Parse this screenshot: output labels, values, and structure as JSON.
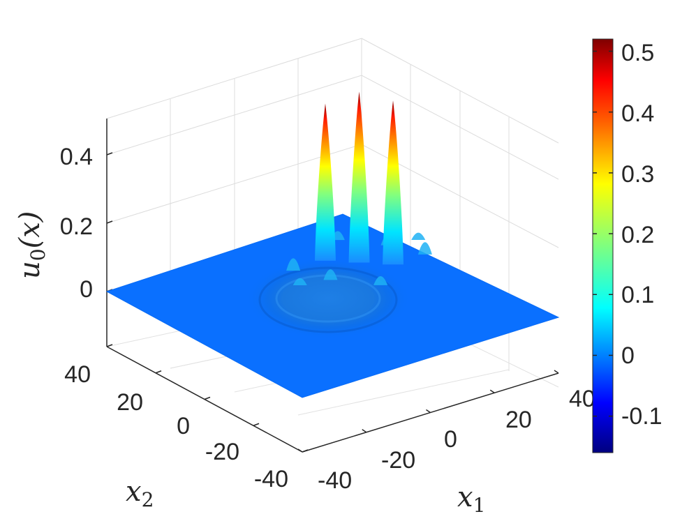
{
  "chart_data": {
    "type": "surface",
    "title": "",
    "xlabel": "x_1",
    "ylabel": "x_2",
    "zlabel": "u_0(x)",
    "xlim": [
      -40,
      40
    ],
    "ylim": [
      -40,
      40
    ],
    "zlim": [
      0,
      0.5
    ],
    "x_ticks": [
      "-40",
      "-20",
      "0",
      "20",
      "40"
    ],
    "y_ticks": [
      "-40",
      "-20",
      "0",
      "20",
      "40"
    ],
    "z_ticks": [
      "0",
      "0.2",
      "0.4"
    ],
    "grid": true,
    "colormap": "jet",
    "colorbar": {
      "range": [
        -0.16,
        0.52
      ],
      "ticks": [
        "0.5",
        "0.4",
        "0.3",
        "0.2",
        "0.1",
        "0",
        "-0.1"
      ],
      "placement": "right"
    },
    "peaks": [
      {
        "x1": -6,
        "x2": 6,
        "value": 0.46
      },
      {
        "x1": 0,
        "x2": 0,
        "value": 0.5
      },
      {
        "x1": 6,
        "x2": -6,
        "value": 0.48
      }
    ],
    "base_value": 0
  }
}
